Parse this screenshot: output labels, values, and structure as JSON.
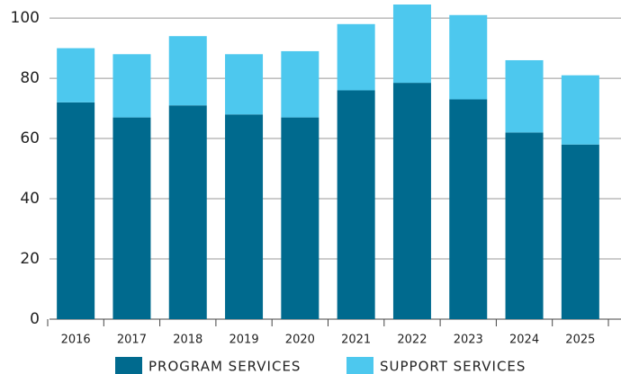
{
  "chart_data": {
    "type": "stacked_bar",
    "categories": [
      "2016",
      "2017",
      "2018",
      "2019",
      "2020",
      "2021",
      "2022",
      "2023",
      "2024",
      "2025"
    ],
    "series": [
      {
        "name": "PROGRAM SERVICES",
        "color": "#006a8e",
        "values": [
          72,
          67,
          71,
          68,
          67,
          76,
          78.5,
          73,
          62,
          58
        ]
      },
      {
        "name": "SUPPORT SERVICES",
        "color": "#4dc8ee",
        "values": [
          18,
          21,
          23,
          20,
          22,
          22,
          26,
          28,
          24,
          23
        ]
      }
    ],
    "ylim": [
      0,
      106
    ],
    "yticks": [
      0,
      20,
      40,
      60,
      80,
      100
    ],
    "grid": true
  }
}
